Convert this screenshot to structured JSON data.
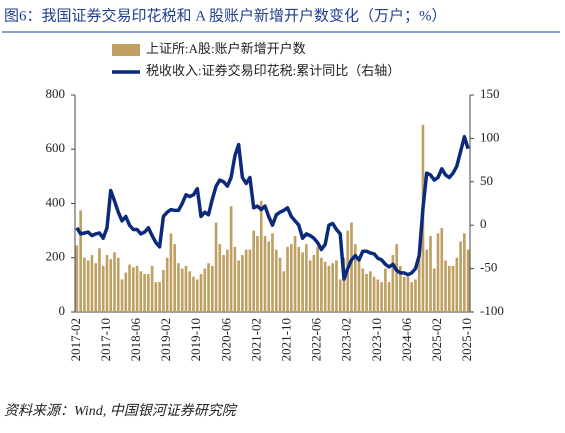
{
  "chart_data": {
    "type": "bar_line",
    "title": "图6：我国证券交易印花税和 A 股账户新增开户数变化（万户；%）",
    "source": "资料来源：Wind, 中国银河证券研究院",
    "categories": [
      "2017-02",
      null,
      null,
      null,
      null,
      null,
      null,
      null,
      "2017-10",
      null,
      null,
      null,
      null,
      null,
      null,
      null,
      "2018-06",
      null,
      null,
      null,
      null,
      null,
      null,
      null,
      "2019-02",
      null,
      null,
      null,
      null,
      null,
      null,
      null,
      "2019-10",
      null,
      null,
      null,
      null,
      null,
      null,
      null,
      "2020-06",
      null,
      null,
      null,
      null,
      null,
      null,
      null,
      "2021-02",
      null,
      null,
      null,
      null,
      null,
      null,
      null,
      "2021-10",
      null,
      null,
      null,
      null,
      null,
      null,
      null,
      "2022-06",
      null,
      null,
      null,
      null,
      null,
      null,
      null,
      "2023-02",
      null,
      null,
      null,
      null,
      null,
      null,
      null,
      "2023-10",
      null,
      null,
      null,
      null,
      null,
      null,
      null,
      "2024-06",
      null,
      null,
      null,
      null,
      null,
      null,
      null,
      "2025-02",
      null,
      null,
      null,
      null,
      null,
      null,
      null,
      "2025-10"
    ],
    "series": [
      {
        "name": "上证所:A股:账户新增开户数",
        "color": "#bf9f62",
        "axis": "y",
        "values": [
          245,
          375,
          200,
          190,
          210,
          180,
          235,
          170,
          210,
          195,
          220,
          200,
          120,
          145,
          175,
          165,
          170,
          150,
          140,
          140,
          170,
          110,
          110,
          155,
          200,
          290,
          250,
          180,
          160,
          170,
          150,
          130,
          120,
          140,
          160,
          180,
          170,
          330,
          250,
          210,
          230,
          390,
          240,
          190,
          210,
          230,
          230,
          300,
          280,
          410,
          280,
          260,
          290,
          230,
          200,
          150,
          240,
          250,
          280,
          240,
          220,
          250,
          190,
          210,
          240,
          200,
          185,
          170,
          180,
          190,
          120,
          200,
          300,
          330,
          250,
          200,
          160,
          140,
          150,
          130,
          120,
          110,
          160,
          110,
          210,
          250,
          170,
          130,
          130,
          110,
          120,
          220,
          690,
          230,
          280,
          160,
          290,
          310,
          190,
          170,
          170,
          200,
          260,
          290,
          230
        ]
      },
      {
        "name": "税收收入:证券交易印花税:累计同比（右轴）",
        "color": "#0c2a7c",
        "axis": "y2",
        "values": [
          -3,
          -10,
          -9,
          -8,
          -12,
          -10,
          -9,
          -15,
          -3,
          40,
          28,
          15,
          5,
          10,
          0,
          -5,
          -5,
          -10,
          -8,
          -3,
          -12,
          -20,
          -25,
          10,
          15,
          18,
          17,
          17,
          25,
          35,
          33,
          35,
          42,
          10,
          15,
          12,
          30,
          45,
          52,
          50,
          45,
          55,
          80,
          93,
          55,
          48,
          55,
          20,
          22,
          18,
          22,
          10,
          0,
          12,
          15,
          17,
          20,
          10,
          5,
          0,
          -15,
          -10,
          -12,
          -15,
          -20,
          -28,
          -22,
          0,
          2,
          -5,
          -10,
          -62,
          -50,
          -40,
          -35,
          -40,
          -30,
          -30,
          -32,
          -33,
          -38,
          -40,
          -45,
          -48,
          -45,
          -52,
          -55,
          -55,
          -57,
          -55,
          -50,
          -35,
          20,
          60,
          58,
          52,
          55,
          65,
          58,
          55,
          60,
          68,
          85,
          102,
          88
        ]
      }
    ],
    "ylim": [
      0,
      800
    ],
    "yticks": [
      0,
      200,
      400,
      600,
      800
    ],
    "y2lim": [
      -100,
      150
    ],
    "y2ticks": [
      -100,
      -50,
      0,
      50,
      100,
      150
    ]
  }
}
